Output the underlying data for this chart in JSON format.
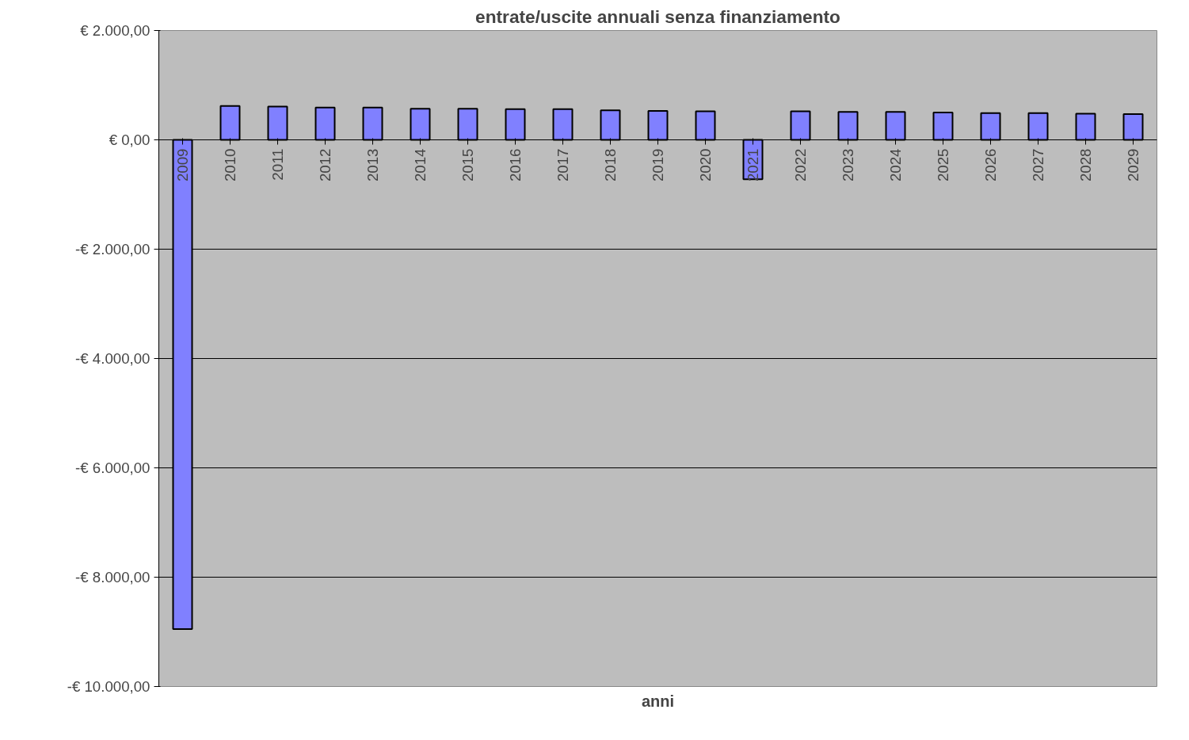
{
  "chart_data": {
    "type": "bar",
    "title": "entrate/uscite annuali senza finanziamento",
    "xlabel": "anni",
    "categories": [
      "2009",
      "2010",
      "2011",
      "2012",
      "2013",
      "2014",
      "2015",
      "2016",
      "2017",
      "2018",
      "2019",
      "2020",
      "2021",
      "2022",
      "2023",
      "2024",
      "2025",
      "2026",
      "2027",
      "2028",
      "2029"
    ],
    "values": [
      -8950,
      620,
      610,
      590,
      590,
      570,
      570,
      560,
      560,
      540,
      530,
      520,
      -720,
      520,
      510,
      510,
      500,
      490,
      490,
      480,
      470
    ],
    "color": "#8080ff",
    "ylim": [
      -10000,
      2000
    ],
    "yticks": [
      {
        "value": 2000,
        "label": "€ 2.000,00"
      },
      {
        "value": 0,
        "label": "€ 0,00"
      },
      {
        "value": -2000,
        "label": "-€ 2.000,00"
      },
      {
        "value": -4000,
        "label": "-€ 4.000,00"
      },
      {
        "value": -6000,
        "label": "-€ 6.000,00"
      },
      {
        "value": -8000,
        "label": "-€ 8.000,00"
      },
      {
        "value": -10000,
        "label": "-€ 10.000,00"
      }
    ],
    "grid": "y"
  }
}
